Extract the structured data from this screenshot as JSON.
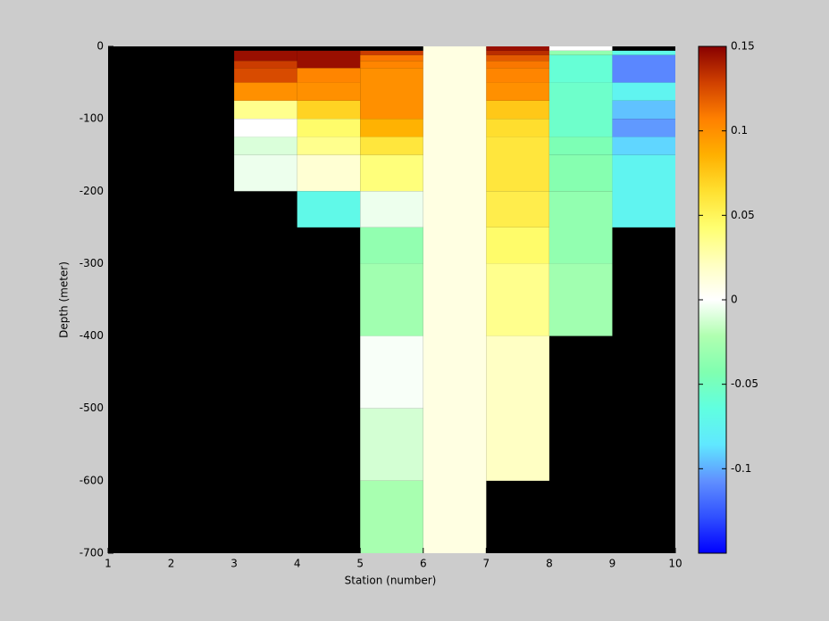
{
  "chart_data": {
    "type": "heatmap",
    "xlabel": "Station (number)",
    "ylabel": "Depth (meter)",
    "xlim": [
      1,
      10
    ],
    "ylim": [
      -700,
      0
    ],
    "xticks": [
      1,
      2,
      3,
      4,
      5,
      6,
      7,
      8,
      9,
      10
    ],
    "yticks": [
      -700,
      -600,
      -500,
      -400,
      -300,
      -200,
      -100,
      0
    ],
    "background": "#000000",
    "clim": [
      -0.15,
      0.15
    ],
    "cticks": [
      -0.1,
      -0.05,
      0,
      0.05,
      0.1,
      0.15
    ],
    "colormap": [
      "#0000ff",
      "#3050ff",
      "#6090ff",
      "#60e8ff",
      "#60ffe0",
      "#80ffb0",
      "#b0ffb0",
      "#ffffff",
      "#ffffc0",
      "#ffff70",
      "#ffe030",
      "#ffb000",
      "#ff8000",
      "#d04000",
      "#880000"
    ],
    "columns": [
      {
        "x": [
          3,
          4
        ],
        "cells": [
          {
            "y": [
              -6,
              -20
            ],
            "value": 0.145
          },
          {
            "y": [
              -20,
              -30
            ],
            "value": 0.13
          },
          {
            "y": [
              -30,
              -50
            ],
            "value": 0.125
          },
          {
            "y": [
              -50,
              -75
            ],
            "value": 0.1
          },
          {
            "y": [
              -75,
              -100
            ],
            "value": 0.035
          },
          {
            "y": [
              -100,
              -125
            ],
            "value": 0
          },
          {
            "y": [
              -125,
              -150
            ],
            "value": -0.01
          },
          {
            "y": [
              -150,
              -200
            ],
            "value": -0.005
          }
        ]
      },
      {
        "x": [
          4,
          5
        ],
        "cells": [
          {
            "y": [
              -6,
              -30
            ],
            "value": 0.145
          },
          {
            "y": [
              -30,
              -50
            ],
            "value": 0.105
          },
          {
            "y": [
              -50,
              -75
            ],
            "value": 0.1
          },
          {
            "y": [
              -75,
              -100
            ],
            "value": 0.07
          },
          {
            "y": [
              -100,
              -125
            ],
            "value": 0.045
          },
          {
            "y": [
              -125,
              -150
            ],
            "value": 0.035
          },
          {
            "y": [
              -150,
              -200
            ],
            "value": 0.015
          },
          {
            "y": [
              -200,
              -250
            ],
            "value": -0.07
          }
        ]
      },
      {
        "x": [
          5,
          6
        ],
        "cells": [
          {
            "y": [
              -6,
              -12
            ],
            "value": 0.13
          },
          {
            "y": [
              -12,
              -20
            ],
            "value": 0.11
          },
          {
            "y": [
              -20,
              -30
            ],
            "value": 0.105
          },
          {
            "y": [
              -30,
              -100
            ],
            "value": 0.1
          },
          {
            "y": [
              -100,
              -125
            ],
            "value": 0.085
          },
          {
            "y": [
              -125,
              -150
            ],
            "value": 0.06
          },
          {
            "y": [
              -150,
              -200
            ],
            "value": 0.04
          },
          {
            "y": [
              -200,
              -250
            ],
            "value": -0.005
          },
          {
            "y": [
              -250,
              -300
            ],
            "value": -0.035
          },
          {
            "y": [
              -300,
              -400
            ],
            "value": -0.028
          },
          {
            "y": [
              -400,
              -500
            ],
            "value": -0.002
          },
          {
            "y": [
              -500,
              -600
            ],
            "value": -0.012
          },
          {
            "y": [
              -600,
              -700
            ],
            "value": -0.025
          }
        ]
      },
      {
        "x": [
          6,
          7
        ],
        "cells": [
          {
            "y": [
              0,
              -700
            ],
            "value": 0.01
          }
        ]
      },
      {
        "x": [
          7,
          8
        ],
        "cells": [
          {
            "y": [
              0,
              -6
            ],
            "value": 0.145
          },
          {
            "y": [
              -6,
              -12
            ],
            "value": 0.135
          },
          {
            "y": [
              -12,
              -20
            ],
            "value": 0.12
          },
          {
            "y": [
              -20,
              -30
            ],
            "value": 0.11
          },
          {
            "y": [
              -30,
              -50
            ],
            "value": 0.105
          },
          {
            "y": [
              -50,
              -75
            ],
            "value": 0.1
          },
          {
            "y": [
              -75,
              -100
            ],
            "value": 0.075
          },
          {
            "y": [
              -100,
              -125
            ],
            "value": 0.065
          },
          {
            "y": [
              -125,
              -200
            ],
            "value": 0.06
          },
          {
            "y": [
              -200,
              -250
            ],
            "value": 0.055
          },
          {
            "y": [
              -250,
              -300
            ],
            "value": 0.045
          },
          {
            "y": [
              -300,
              -400
            ],
            "value": 0.035
          },
          {
            "y": [
              -400,
              -600
            ],
            "value": 0.02
          }
        ]
      },
      {
        "x": [
          8,
          9
        ],
        "cells": [
          {
            "y": [
              0,
              -6
            ],
            "value": 0
          },
          {
            "y": [
              -6,
              -12
            ],
            "value": -0.035
          },
          {
            "y": [
              -12,
              -50
            ],
            "value": -0.06
          },
          {
            "y": [
              -50,
              -125
            ],
            "value": -0.055
          },
          {
            "y": [
              -125,
              -150
            ],
            "value": -0.045
          },
          {
            "y": [
              -150,
              -200
            ],
            "value": -0.04
          },
          {
            "y": [
              -200,
              -300
            ],
            "value": -0.035
          },
          {
            "y": [
              -300,
              -400
            ],
            "value": -0.028
          }
        ]
      },
      {
        "x": [
          9,
          10
        ],
        "cells": [
          {
            "y": [
              -6,
              -12
            ],
            "value": -0.07
          },
          {
            "y": [
              -12,
              -50
            ],
            "value": -0.11
          },
          {
            "y": [
              -50,
              -75
            ],
            "value": -0.075
          },
          {
            "y": [
              -75,
              -100
            ],
            "value": -0.095
          },
          {
            "y": [
              -100,
              -125
            ],
            "value": -0.105
          },
          {
            "y": [
              -125,
              -150
            ],
            "value": -0.09
          },
          {
            "y": [
              -150,
              -250
            ],
            "value": -0.075
          }
        ]
      }
    ]
  }
}
